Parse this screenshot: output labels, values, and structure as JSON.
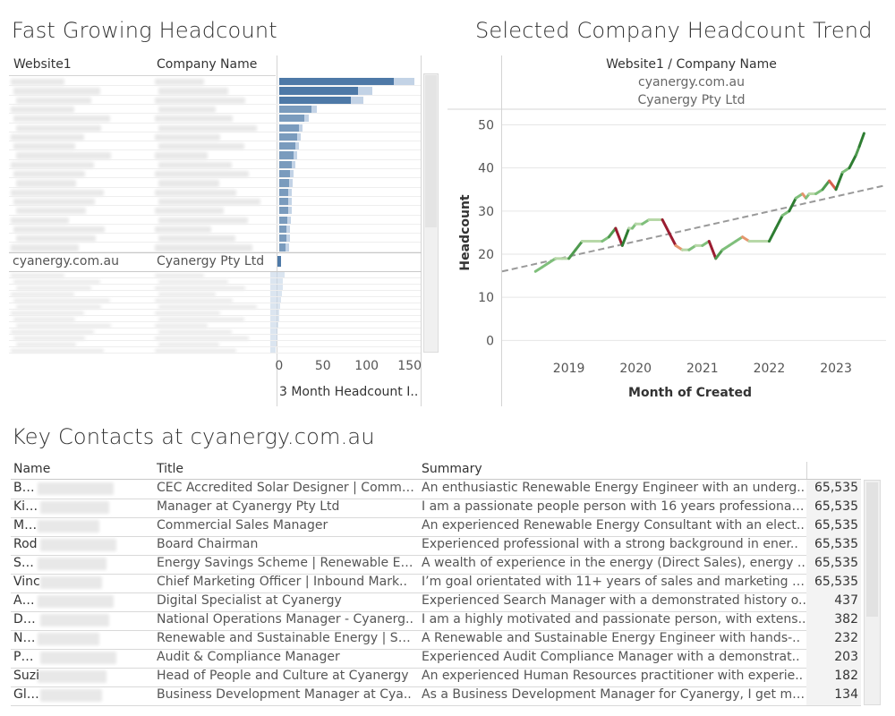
{
  "left_panel": {
    "title": "Fast Growing Headcount",
    "col_website": "Website1",
    "col_company": "Company Name",
    "selected_website": "cyanergy.com.au",
    "selected_company": "Cyanergy Pty Ltd",
    "x_axis_label": "3 Month Headcount I..",
    "x_ticks": [
      "0",
      "50",
      "100",
      "150"
    ]
  },
  "right_panel": {
    "title": "Selected Company Headcount Trend",
    "header_label": "Website1  /  Company Name",
    "header_website": "cyanergy.com.au",
    "header_company": "Cyanergy Pty Ltd"
  },
  "chart_data": [
    {
      "type": "bar",
      "orientation": "horizontal",
      "x_axis_label": "3 Month Headcount I..",
      "xlim": [
        0,
        200
      ],
      "x_ticks": [
        0,
        50,
        100,
        150
      ],
      "categories_visible": [
        "cyanergy.com.au / Cyanergy Pty Ltd"
      ],
      "values_upper_rows": [
        160,
        110,
        100,
        45,
        35,
        28,
        25,
        22,
        20,
        18,
        15,
        14,
        13,
        12,
        12,
        11,
        10,
        10,
        9
      ],
      "selected_value": 5,
      "values_lower_rows": [
        20,
        18,
        18,
        16,
        15,
        14,
        13,
        12,
        11,
        10,
        10,
        9,
        8
      ]
    },
    {
      "type": "line",
      "title": "Selected Company Headcount Trend",
      "xlabel": "Month of Created",
      "ylabel": "Headcount",
      "x_ticks": [
        "2019",
        "2020",
        "2021",
        "2022",
        "2023"
      ],
      "y_ticks": [
        0,
        10,
        20,
        30,
        40,
        50
      ],
      "ylim": [
        -2,
        53
      ],
      "xlim": [
        2018.0,
        2023.75
      ],
      "x": [
        2018.5,
        2018.6,
        2018.7,
        2018.8,
        2018.9,
        2019.0,
        2019.1,
        2019.2,
        2019.3,
        2019.4,
        2019.5,
        2019.6,
        2019.7,
        2019.8,
        2019.9,
        2019.95,
        2020.0,
        2020.1,
        2020.2,
        2020.3,
        2020.4,
        2020.5,
        2020.6,
        2020.7,
        2020.8,
        2020.9,
        2021.0,
        2021.1,
        2021.2,
        2021.3,
        2021.4,
        2021.5,
        2021.6,
        2021.7,
        2021.8,
        2021.9,
        2022.0,
        2022.1,
        2022.2,
        2022.3,
        2022.4,
        2022.5,
        2022.55,
        2022.6,
        2022.7,
        2022.8,
        2022.9,
        2023.0,
        2023.1,
        2023.2,
        2023.3,
        2023.35,
        2023.42
      ],
      "y": [
        16,
        17,
        18,
        19,
        19,
        19,
        21,
        23,
        23,
        23,
        23,
        24,
        26,
        22,
        26,
        26,
        27,
        27,
        28,
        28,
        28,
        25,
        22,
        21,
        21,
        22,
        22,
        23,
        19,
        21,
        22,
        23,
        24,
        23,
        23,
        23,
        23,
        26,
        29,
        30,
        33,
        34,
        33,
        34,
        34,
        35,
        37,
        35,
        39,
        40,
        43,
        45,
        48
      ],
      "trend_line": {
        "x": [
          2018.0,
          2023.75
        ],
        "y": [
          16,
          36
        ]
      }
    }
  ],
  "contacts_panel": {
    "title": "Key Contacts at cyanergy.com.au",
    "col_name": "Name",
    "col_title": "Title",
    "col_summary": "Summary",
    "rows": [
      {
        "name": "Bens",
        "title": "CEC Accredited Solar Designer | Comme..",
        "summary": "An enthusiastic Renewable Energy Engineer with an underg..",
        "value": "65,535"
      },
      {
        "name": "Kia M",
        "title": "Manager at Cyanergy Pty Ltd",
        "summary": "I am a passionate people person with 16 years professional ..",
        "value": "65,535"
      },
      {
        "name": "Matt",
        "title": "Commercial Sales Manager",
        "summary": "An experienced Renewable Energy Consultant with an elect..",
        "value": "65,535"
      },
      {
        "name": "Rod",
        "title": "Board Chairman",
        "summary": "Experienced professional with a strong background in ener..",
        "value": "65,535"
      },
      {
        "name": "Sadc",
        "title": "Energy Savings Scheme | Renewable En..",
        "summary": "A wealth of experience in the energy (Direct Sales), energy ..",
        "value": "65,535"
      },
      {
        "name": "Vinc",
        "title": "Chief Marketing Officer | Inbound Mark..",
        "summary": "I’m goal orientated with 11+ years of sales and marketing e..",
        "value": "65,535"
      },
      {
        "name": "Ahar",
        "title": "Digital Specialist at Cyanergy",
        "summary": "Experienced Search Manager with a demonstrated history o..",
        "value": "437"
      },
      {
        "name": "Dani",
        "title": "National Operations Manager - Cyanerg..",
        "summary": "I am a highly motivated and passionate person, with extens..",
        "value": "382"
      },
      {
        "name": "Nath",
        "title": "Renewable and Sustainable Energy | Sol..",
        "summary": "A Renewable and Sustainable Energy Engineer with hands-..",
        "value": "232"
      },
      {
        "name": "Phoe",
        "title": "Audit & Compliance Manager",
        "summary": "Experienced Audit Compliance Manager with a demonstrat..",
        "value": "203"
      },
      {
        "name": "Suzi",
        "title": "Head of People and Culture at Cyanergy",
        "summary": "An experienced Human Resources practitioner with experie..",
        "value": "182"
      },
      {
        "name": "Glen",
        "title": "Business Development Manager at Cya..",
        "summary": "As a Business Development Manager for Cyanergy, I get my ..",
        "value": "134"
      }
    ]
  }
}
